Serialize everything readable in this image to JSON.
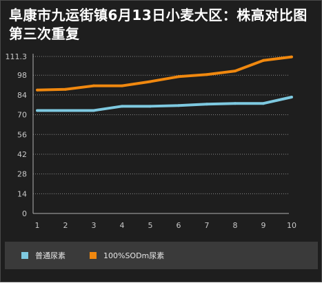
{
  "chart_data": {
    "type": "line",
    "title": "阜康市九运街镇6月13日小麦大区：株高对比图第三次重复",
    "xlabel": "",
    "ylabel": "",
    "categories": [
      "1",
      "2",
      "3",
      "4",
      "5",
      "6",
      "7",
      "8",
      "9",
      "10"
    ],
    "y_ticks": [
      "0",
      "14",
      "28",
      "42",
      "56",
      "70",
      "84",
      "98",
      "111.3"
    ],
    "ylim": [
      0,
      111.3
    ],
    "grid": true,
    "legend_position": "bottom",
    "series": [
      {
        "name": "普通尿素",
        "color": "#7ec9e0",
        "values": [
          73,
          73,
          73,
          76,
          76,
          76.5,
          77.5,
          78,
          78,
          82.5
        ]
      },
      {
        "name": "100%SODm尿素",
        "color": "#f0880f",
        "values": [
          87.5,
          88,
          90.5,
          90.5,
          93.5,
          97,
          98.5,
          101,
          108.5,
          111
        ]
      }
    ]
  }
}
